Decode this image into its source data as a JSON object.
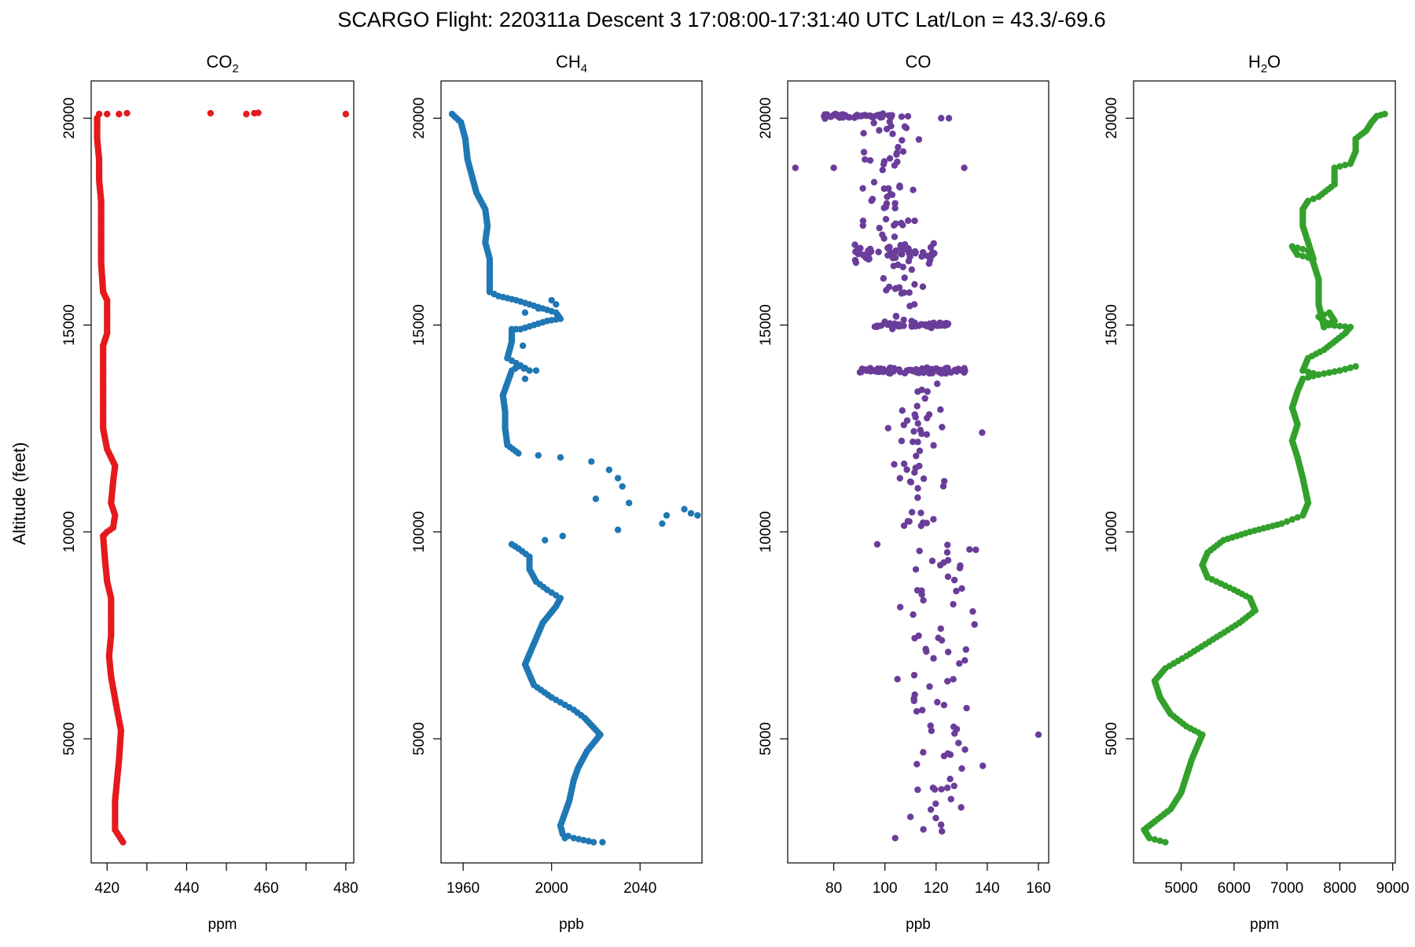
{
  "title": "SCARGO Flight: 220311a  Descent 3 17:08:00-17:31:40 UTC  Lat/Lon = 43.3/-69.6",
  "ylabel": "Altitude (feet)",
  "chart_data": [
    {
      "type": "scatter",
      "title_main": "CO",
      "title_sub": "2",
      "xlabel": "ppm",
      "color": "#e41a1c",
      "xlim": [
        416,
        482
      ],
      "ylim": [
        2000,
        20900
      ],
      "xticks": [
        420,
        440,
        460,
        480
      ],
      "yticks": [
        5000,
        10000,
        15000,
        20000
      ],
      "profile": [
        [
          424,
          2500
        ],
        [
          422,
          2800
        ],
        [
          422,
          3500
        ],
        [
          423,
          4500
        ],
        [
          423.5,
          5200
        ],
        [
          422.5,
          5700
        ],
        [
          421,
          6500
        ],
        [
          420.5,
          7000
        ],
        [
          421,
          7500
        ],
        [
          421,
          8000
        ],
        [
          421,
          8400
        ],
        [
          420,
          8800
        ],
        [
          419.5,
          9300
        ],
        [
          419,
          9900
        ],
        [
          420,
          10000
        ],
        [
          421.5,
          10100
        ],
        [
          422,
          10400
        ],
        [
          421,
          10700
        ],
        [
          421.5,
          11200
        ],
        [
          422,
          11600
        ],
        [
          420,
          12000
        ],
        [
          419,
          12500
        ],
        [
          419,
          13000
        ],
        [
          419,
          13500
        ],
        [
          419,
          14000
        ],
        [
          419,
          14500
        ],
        [
          420,
          14800
        ],
        [
          420,
          15300
        ],
        [
          420,
          15600
        ],
        [
          419,
          15800
        ],
        [
          418.5,
          16500
        ],
        [
          418.5,
          17000
        ],
        [
          418.5,
          17500
        ],
        [
          418.5,
          18000
        ],
        [
          418,
          18500
        ],
        [
          418,
          19000
        ],
        [
          417.5,
          19500
        ],
        [
          417.5,
          20000
        ]
      ],
      "outliers": [
        [
          418,
          20100
        ],
        [
          420,
          20100
        ],
        [
          423,
          20100
        ],
        [
          425,
          20120
        ],
        [
          446,
          20120
        ],
        [
          455,
          20100
        ],
        [
          457,
          20120
        ],
        [
          458,
          20130
        ],
        [
          480,
          20100
        ]
      ]
    },
    {
      "type": "scatter",
      "title_main": "CH",
      "title_sub": "4",
      "xlabel": "ppb",
      "color": "#1f78b4",
      "xlim": [
        1950,
        2068
      ],
      "ylim": [
        2000,
        20900
      ],
      "xticks": [
        1960,
        2000,
        2040
      ],
      "yticks": [
        5000,
        10000,
        15000,
        20000
      ],
      "profile": [
        [
          2019,
          2500
        ],
        [
          2010,
          2600
        ],
        [
          2005,
          2700
        ],
        [
          2004,
          2900
        ],
        [
          2008,
          3500
        ],
        [
          2010,
          4000
        ],
        [
          2012,
          4300
        ],
        [
          2016,
          4700
        ],
        [
          2022,
          5100
        ],
        [
          2015,
          5500
        ],
        [
          2010,
          5700
        ],
        [
          2000,
          6000
        ],
        [
          1992,
          6300
        ],
        [
          1988,
          6800
        ],
        [
          1992,
          7300
        ],
        [
          1996,
          7800
        ],
        [
          2002,
          8200
        ],
        [
          2004,
          8400
        ],
        [
          1998,
          8600
        ],
        [
          1993,
          8800
        ],
        [
          1990,
          9100
        ],
        [
          1990,
          9400
        ],
        [
          1985,
          9600
        ],
        [
          1982,
          9700
        ]
      ],
      "profile2": [
        [
          1985,
          11900
        ],
        [
          1980,
          12100
        ],
        [
          1979,
          12500
        ],
        [
          1979,
          12900
        ],
        [
          1978,
          13300
        ],
        [
          1980,
          13600
        ],
        [
          1982,
          13900
        ],
        [
          1985,
          14000
        ],
        [
          1990,
          13900
        ],
        [
          1980,
          14200
        ],
        [
          1982,
          14600
        ],
        [
          1982,
          14900
        ],
        [
          1986,
          14900
        ],
        [
          1992,
          15000
        ],
        [
          1998,
          15100
        ],
        [
          2004,
          15150
        ],
        [
          2002,
          15300
        ],
        [
          1996,
          15400
        ],
        [
          1990,
          15500
        ],
        [
          1984,
          15600
        ],
        [
          1976,
          15700
        ],
        [
          1972,
          15800
        ],
        [
          1972,
          16200
        ],
        [
          1972,
          16600
        ],
        [
          1970,
          17000
        ],
        [
          1971,
          17400
        ],
        [
          1970,
          17800
        ],
        [
          1966,
          18200
        ],
        [
          1964,
          18600
        ],
        [
          1962,
          19000
        ],
        [
          1961,
          19500
        ],
        [
          1959,
          19900
        ],
        [
          1955,
          20100
        ]
      ],
      "scatter": [
        [
          1997,
          9800
        ],
        [
          2005,
          9900
        ],
        [
          2030,
          10050
        ],
        [
          2050,
          10200
        ],
        [
          2052,
          10400
        ],
        [
          2060,
          10550
        ],
        [
          2066,
          10400
        ],
        [
          2063,
          10450
        ],
        [
          2035,
          10700
        ],
        [
          2020,
          10800
        ],
        [
          2032,
          11100
        ],
        [
          2030,
          11300
        ],
        [
          2026,
          11500
        ],
        [
          2018,
          11700
        ],
        [
          2004,
          11800
        ],
        [
          1994,
          11850
        ],
        [
          2000,
          15600
        ],
        [
          2002,
          15500
        ],
        [
          1994,
          15400
        ],
        [
          1988,
          15300
        ],
        [
          1987,
          14500
        ],
        [
          1993,
          13900
        ],
        [
          1988,
          13700
        ],
        [
          2023,
          2500
        ],
        [
          2006,
          2600
        ]
      ]
    },
    {
      "type": "scatter",
      "title_main": "CO",
      "title_sub": "",
      "xlabel": "ppb",
      "color": "#6a3d9a",
      "xlim": [
        62,
        164
      ],
      "ylim": [
        2000,
        20900
      ],
      "xticks": [
        80,
        100,
        120,
        140,
        160
      ],
      "yticks": [
        5000,
        10000,
        15000,
        20000
      ],
      "bands": [
        {
          "y": 20050,
          "xmin": 73,
          "xmax": 110,
          "n": 48,
          "spread": 80
        },
        {
          "y": 13900,
          "xmin": 90,
          "xmax": 132,
          "n": 90,
          "spread": 100
        },
        {
          "y": 15000,
          "xmin": 96,
          "xmax": 125,
          "n": 50,
          "spread": 120
        },
        {
          "y": 16750,
          "xmin": 88,
          "xmax": 120,
          "n": 60,
          "spread": 350
        }
      ],
      "columns": [
        {
          "ymin": 2500,
          "ymax": 9800,
          "xmin": 100,
          "xmax": 145,
          "n": 80
        },
        {
          "ymin": 9800,
          "ymax": 13600,
          "xmin": 96,
          "xmax": 130,
          "n": 50
        },
        {
          "ymin": 17000,
          "ymax": 20000,
          "xmin": 86,
          "xmax": 118,
          "n": 55
        },
        {
          "ymin": 15100,
          "ymax": 16500,
          "xmin": 95,
          "xmax": 120,
          "n": 20
        }
      ],
      "outliers": [
        [
          65,
          18800
        ],
        [
          160,
          5100
        ],
        [
          131,
          18800
        ],
        [
          138,
          12400
        ],
        [
          80,
          18800
        ],
        [
          97,
          9700
        ],
        [
          104,
          2600
        ],
        [
          125,
          20000
        ],
        [
          122,
          20000
        ]
      ]
    },
    {
      "type": "scatter",
      "title_main": "H",
      "title_sub": "2",
      "title_tail": "O",
      "xlabel": "ppm",
      "color": "#33a02c",
      "xlim": [
        4100,
        9050
      ],
      "ylim": [
        2000,
        20900
      ],
      "xticks": [
        5000,
        6000,
        7000,
        8000,
        9000
      ],
      "yticks": [
        5000,
        10000,
        15000,
        20000
      ],
      "profile": [
        [
          4700,
          2500
        ],
        [
          4400,
          2600
        ],
        [
          4300,
          2800
        ],
        [
          4500,
          3000
        ],
        [
          4800,
          3300
        ],
        [
          5000,
          3700
        ],
        [
          5100,
          4100
        ],
        [
          5200,
          4500
        ],
        [
          5300,
          4800
        ],
        [
          5400,
          5100
        ],
        [
          5100,
          5300
        ],
        [
          4800,
          5600
        ],
        [
          4600,
          6000
        ],
        [
          4500,
          6400
        ],
        [
          4700,
          6700
        ],
        [
          5100,
          7000
        ],
        [
          5600,
          7400
        ],
        [
          6100,
          7800
        ],
        [
          6400,
          8100
        ],
        [
          6300,
          8400
        ],
        [
          6000,
          8600
        ],
        [
          5500,
          8900
        ],
        [
          5400,
          9200
        ],
        [
          5500,
          9500
        ],
        [
          5800,
          9800
        ],
        [
          6300,
          10000
        ],
        [
          6900,
          10200
        ],
        [
          7300,
          10400
        ],
        [
          7400,
          10700
        ],
        [
          7300,
          11300
        ],
        [
          7200,
          11800
        ],
        [
          7100,
          12200
        ],
        [
          7200,
          12600
        ],
        [
          7100,
          13000
        ],
        [
          7200,
          13400
        ],
        [
          7300,
          13700
        ],
        [
          7600,
          13800
        ],
        [
          8000,
          13900
        ],
        [
          8300,
          14000
        ],
        [
          8000,
          13900
        ],
        [
          7600,
          13800
        ],
        [
          7300,
          13900
        ],
        [
          7400,
          14200
        ],
        [
          7700,
          14400
        ],
        [
          8100,
          14800
        ],
        [
          8200,
          14950
        ],
        [
          7800,
          15000
        ],
        [
          7600,
          15200
        ],
        [
          7800,
          15300
        ],
        [
          7900,
          15100
        ],
        [
          7700,
          14950
        ],
        [
          7600,
          15500
        ],
        [
          7600,
          16100
        ],
        [
          7500,
          16500
        ],
        [
          7400,
          16800
        ],
        [
          7100,
          16900
        ],
        [
          7200,
          16700
        ],
        [
          7500,
          16600
        ],
        [
          7400,
          17000
        ],
        [
          7300,
          17400
        ],
        [
          7300,
          17800
        ],
        [
          7400,
          18000
        ],
        [
          7600,
          18100
        ],
        [
          7900,
          18400
        ],
        [
          7900,
          18800
        ],
        [
          8200,
          18900
        ],
        [
          8300,
          19200
        ],
        [
          8300,
          19500
        ],
        [
          8500,
          19700
        ],
        [
          8600,
          19900
        ],
        [
          8700,
          20050
        ],
        [
          8850,
          20100
        ]
      ]
    }
  ]
}
